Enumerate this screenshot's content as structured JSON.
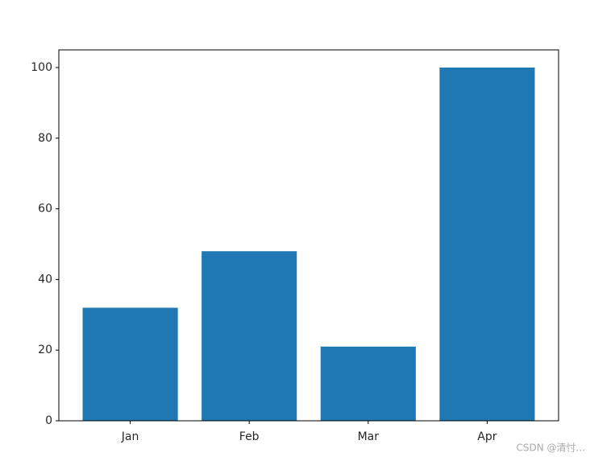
{
  "chart_data": {
    "type": "bar",
    "categories": [
      "Jan",
      "Feb",
      "Mar",
      "Apr"
    ],
    "values": [
      32,
      48,
      21,
      100
    ],
    "color": "#1f77b4",
    "ylim": [
      0,
      105
    ],
    "yticks": [
      0,
      20,
      40,
      60,
      80,
      100
    ],
    "grid": false
  },
  "watermark": "CSDN @清忖..."
}
